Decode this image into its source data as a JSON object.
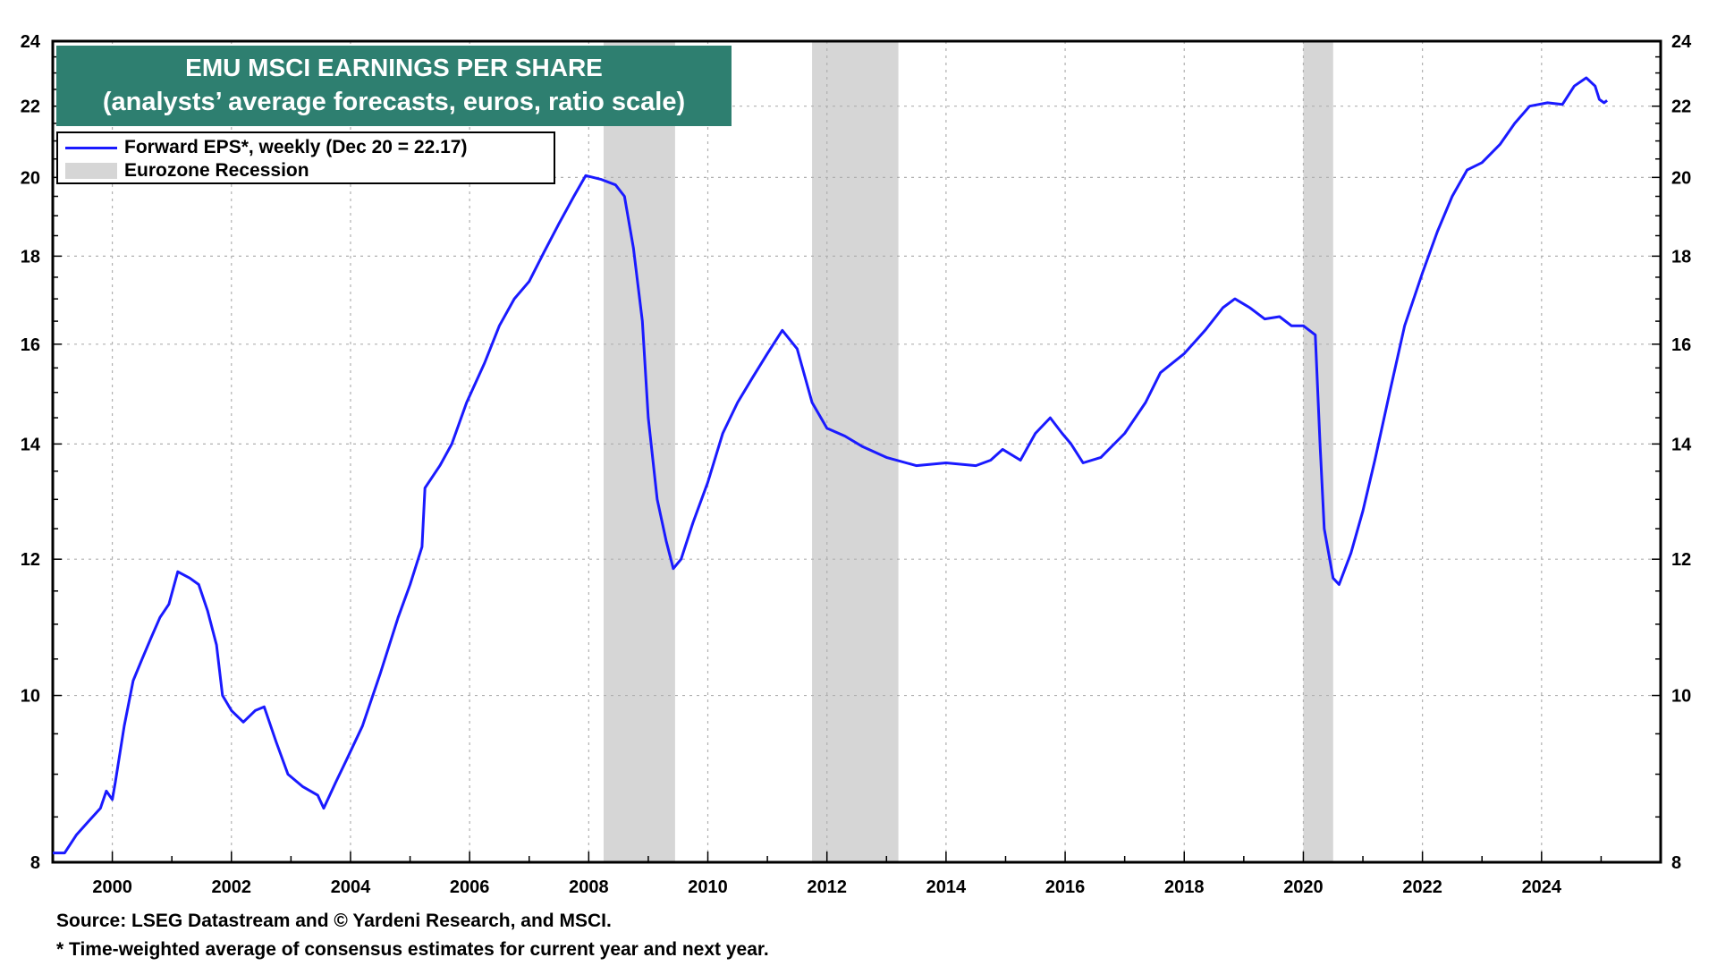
{
  "title": {
    "line1": "EMU MSCI EARNINGS PER SHARE",
    "line2": "(analysts’ average forecasts, euros, ratio scale)"
  },
  "legend": {
    "series_label": "Forward EPS*, weekly (Dec 20 = 22.17)",
    "recession_label": "Eurozone Recession"
  },
  "source": "Source: LSEG Datastream and © Yardeni Research, and MSCI.",
  "footnote": "* Time-weighted average of consensus estimates for current year and next year.",
  "colors": {
    "series": "#1a1aff",
    "recession": "#d6d6d6",
    "title_bg": "#2e7f70"
  },
  "chart_data": {
    "type": "line",
    "y_scale": "log",
    "ylim": [
      8,
      24
    ],
    "xlim": [
      1999.0,
      2026.0
    ],
    "y_ticks": [
      8,
      10,
      12,
      14,
      16,
      18,
      20,
      22,
      24
    ],
    "y_tick_labels": [
      "8",
      "10",
      "12",
      "14",
      "16",
      "18",
      "20",
      "22",
      "24"
    ],
    "x_ticks": [
      2000,
      2002,
      2004,
      2006,
      2008,
      2010,
      2012,
      2014,
      2016,
      2018,
      2020,
      2022,
      2024
    ],
    "x_tick_labels": [
      "2000",
      "2002",
      "2004",
      "2006",
      "2008",
      "2010",
      "2012",
      "2014",
      "2016",
      "2018",
      "2020",
      "2022",
      "2024"
    ],
    "recessions": [
      [
        2008.25,
        2009.45
      ],
      [
        2011.75,
        2013.2
      ],
      [
        2020.0,
        2020.5
      ]
    ],
    "series": [
      {
        "name": "Forward EPS*, weekly (Dec 20 = 22.17)",
        "points": [
          [
            1999.0,
            8.1
          ],
          [
            1999.2,
            8.1
          ],
          [
            1999.4,
            8.3
          ],
          [
            1999.6,
            8.45
          ],
          [
            1999.8,
            8.6
          ],
          [
            1999.9,
            8.8
          ],
          [
            2000.0,
            8.7
          ],
          [
            2000.05,
            8.9
          ],
          [
            2000.2,
            9.6
          ],
          [
            2000.35,
            10.2
          ],
          [
            2000.5,
            10.5
          ],
          [
            2000.65,
            10.8
          ],
          [
            2000.8,
            11.1
          ],
          [
            2000.95,
            11.3
          ],
          [
            2001.1,
            11.8
          ],
          [
            2001.3,
            11.7
          ],
          [
            2001.45,
            11.6
          ],
          [
            2001.6,
            11.2
          ],
          [
            2001.75,
            10.7
          ],
          [
            2001.85,
            10.0
          ],
          [
            2002.0,
            9.8
          ],
          [
            2002.2,
            9.65
          ],
          [
            2002.4,
            9.8
          ],
          [
            2002.55,
            9.85
          ],
          [
            2002.75,
            9.4
          ],
          [
            2002.95,
            9.0
          ],
          [
            2003.2,
            8.85
          ],
          [
            2003.45,
            8.75
          ],
          [
            2003.55,
            8.6
          ],
          [
            2003.75,
            8.9
          ],
          [
            2003.95,
            9.2
          ],
          [
            2004.2,
            9.6
          ],
          [
            2004.5,
            10.3
          ],
          [
            2004.8,
            11.1
          ],
          [
            2005.0,
            11.6
          ],
          [
            2005.2,
            12.2
          ],
          [
            2005.25,
            13.2
          ],
          [
            2005.5,
            13.6
          ],
          [
            2005.7,
            14.0
          ],
          [
            2005.95,
            14.8
          ],
          [
            2006.25,
            15.6
          ],
          [
            2006.5,
            16.4
          ],
          [
            2006.75,
            17.0
          ],
          [
            2007.0,
            17.4
          ],
          [
            2007.25,
            18.1
          ],
          [
            2007.5,
            18.8
          ],
          [
            2007.75,
            19.5
          ],
          [
            2007.95,
            20.05
          ],
          [
            2008.2,
            19.95
          ],
          [
            2008.45,
            19.8
          ],
          [
            2008.6,
            19.5
          ],
          [
            2008.75,
            18.2
          ],
          [
            2008.9,
            16.5
          ],
          [
            2009.0,
            14.5
          ],
          [
            2009.15,
            13.0
          ],
          [
            2009.3,
            12.3
          ],
          [
            2009.42,
            11.85
          ],
          [
            2009.55,
            12.0
          ],
          [
            2009.75,
            12.6
          ],
          [
            2010.0,
            13.3
          ],
          [
            2010.25,
            14.2
          ],
          [
            2010.5,
            14.8
          ],
          [
            2010.75,
            15.3
          ],
          [
            2011.0,
            15.8
          ],
          [
            2011.25,
            16.3
          ],
          [
            2011.5,
            15.9
          ],
          [
            2011.75,
            14.8
          ],
          [
            2012.0,
            14.3
          ],
          [
            2012.3,
            14.15
          ],
          [
            2012.6,
            13.95
          ],
          [
            2013.0,
            13.75
          ],
          [
            2013.5,
            13.6
          ],
          [
            2014.0,
            13.65
          ],
          [
            2014.5,
            13.6
          ],
          [
            2014.75,
            13.7
          ],
          [
            2014.95,
            13.9
          ],
          [
            2015.25,
            13.7
          ],
          [
            2015.5,
            14.2
          ],
          [
            2015.75,
            14.5
          ],
          [
            2015.95,
            14.2
          ],
          [
            2016.1,
            14.0
          ],
          [
            2016.3,
            13.65
          ],
          [
            2016.6,
            13.75
          ],
          [
            2017.0,
            14.2
          ],
          [
            2017.35,
            14.8
          ],
          [
            2017.6,
            15.4
          ],
          [
            2018.0,
            15.8
          ],
          [
            2018.35,
            16.3
          ],
          [
            2018.65,
            16.8
          ],
          [
            2018.85,
            17.0
          ],
          [
            2019.1,
            16.8
          ],
          [
            2019.35,
            16.55
          ],
          [
            2019.6,
            16.6
          ],
          [
            2019.8,
            16.4
          ],
          [
            2020.0,
            16.4
          ],
          [
            2020.2,
            16.2
          ],
          [
            2020.28,
            14.0
          ],
          [
            2020.35,
            12.5
          ],
          [
            2020.5,
            11.7
          ],
          [
            2020.6,
            11.6
          ],
          [
            2020.8,
            12.1
          ],
          [
            2021.0,
            12.8
          ],
          [
            2021.2,
            13.7
          ],
          [
            2021.45,
            15.0
          ],
          [
            2021.7,
            16.4
          ],
          [
            2022.0,
            17.6
          ],
          [
            2022.25,
            18.6
          ],
          [
            2022.5,
            19.5
          ],
          [
            2022.75,
            20.2
          ],
          [
            2023.0,
            20.4
          ],
          [
            2023.3,
            20.9
          ],
          [
            2023.55,
            21.5
          ],
          [
            2023.8,
            22.0
          ],
          [
            2024.1,
            22.1
          ],
          [
            2024.35,
            22.05
          ],
          [
            2024.55,
            22.6
          ],
          [
            2024.75,
            22.85
          ],
          [
            2024.9,
            22.6
          ],
          [
            2024.97,
            22.2
          ],
          [
            2025.05,
            22.1
          ],
          [
            2025.1,
            22.17
          ]
        ]
      }
    ]
  }
}
